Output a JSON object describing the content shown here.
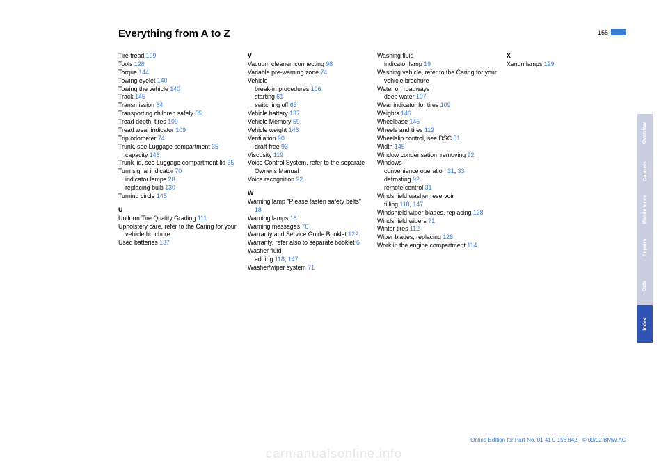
{
  "header": {
    "title": "Everything from A to Z",
    "page_number": "155"
  },
  "colors": {
    "link": "#3a7bd5",
    "tab_grey": "#c9cfe0",
    "tab_blue": "#2f52b5",
    "watermark": "#e6e6e6"
  },
  "tabs": [
    {
      "label": "Overview",
      "style": "grey"
    },
    {
      "label": "Controls",
      "style": "grey"
    },
    {
      "label": "Maintenance",
      "style": "grey"
    },
    {
      "label": "Repairs",
      "style": "grey"
    },
    {
      "label": "Data",
      "style": "grey"
    },
    {
      "label": "Index",
      "style": "blue"
    }
  ],
  "footer": "Online Edition for Part-No. 01 41 0 156 842 - © 09/02 BMW AG",
  "watermark": "carmanualsonline.info",
  "columns": [
    [
      {
        "t": "Tire tread ",
        "r": "109"
      },
      {
        "t": "Tools ",
        "r": "128"
      },
      {
        "t": "Torque ",
        "r": "144"
      },
      {
        "t": "Towing eyelet ",
        "r": "140"
      },
      {
        "t": "Towing the vehicle ",
        "r": "140"
      },
      {
        "t": "Track ",
        "r": "145"
      },
      {
        "t": "Transmission ",
        "r": "64"
      },
      {
        "t": "Transporting children safely ",
        "r": "55",
        "wrap": true
      },
      {
        "t": "Tread depth, tires ",
        "r": "109"
      },
      {
        "t": "Tread wear indicator ",
        "r": "109"
      },
      {
        "t": "Trip odometer ",
        "r": "74"
      },
      {
        "t": "Trunk, see Luggage compartment ",
        "r": "35",
        "wrap": true
      },
      {
        "t": "capacity ",
        "r": "146",
        "sub": true
      },
      {
        "t": "Trunk lid, see Luggage compartment lid ",
        "r": "35",
        "wrap": true
      },
      {
        "t": "Turn signal indicator ",
        "r": "70"
      },
      {
        "t": "indicator lamps ",
        "r": "20",
        "sub": true
      },
      {
        "t": "replacing bulb ",
        "r": "130",
        "sub": true
      },
      {
        "t": "Turning circle ",
        "r": "145"
      },
      {
        "letter": "U"
      },
      {
        "t": "Uniform Tire Quality Grading ",
        "r": "111",
        "wrap": true
      },
      {
        "t": "Upholstery care, refer to the Caring for your vehicle brochure",
        "wrap": true
      },
      {
        "t": "Used batteries ",
        "r": "137"
      }
    ],
    [
      {
        "letter": "V"
      },
      {
        "t": "Vacuum cleaner, connecting ",
        "r": "98",
        "wrap": true
      },
      {
        "t": "Variable pre-warning zone ",
        "r": "74",
        "wrap": true
      },
      {
        "t": "Vehicle"
      },
      {
        "t": "break-in procedures ",
        "r": "106",
        "sub": true
      },
      {
        "t": "starting ",
        "r": "61",
        "sub": true
      },
      {
        "t": "switching off ",
        "r": "63",
        "sub": true
      },
      {
        "t": "Vehicle battery ",
        "r": "137"
      },
      {
        "t": "Vehicle Memory ",
        "r": "59"
      },
      {
        "t": "Vehicle weight ",
        "r": "146"
      },
      {
        "t": "Ventilation ",
        "r": "90"
      },
      {
        "t": "draft-free ",
        "r": "93",
        "sub": true
      },
      {
        "t": "Viscosity ",
        "r": "119"
      },
      {
        "t": "Voice Control System, refer to the separate Owner's Manual",
        "wrap": true
      },
      {
        "t": "Voice recognition ",
        "r": "22"
      },
      {
        "letter": "W"
      },
      {
        "t": "Warning lamp \"Please fasten safety belts\" ",
        "r": "18",
        "wrap": true
      },
      {
        "t": "Warning lamps ",
        "r": "18"
      },
      {
        "t": "Warning messages ",
        "r": "76"
      },
      {
        "t": "Warranty and Service Guide Booklet ",
        "r": "122",
        "wrap": true
      },
      {
        "t": "Warranty, refer also to separate booklet ",
        "r": "6",
        "wrap": true
      },
      {
        "t": "Washer fluid"
      },
      {
        "t": "adding ",
        "r": "118",
        "r2": "147",
        "sub": true
      },
      {
        "t": "Washer/wiper system ",
        "r": "71"
      }
    ],
    [
      {
        "t": "Washing fluid"
      },
      {
        "t": "indicator lamp ",
        "r": "19",
        "sub": true
      },
      {
        "t": "Washing vehicle, refer to the Caring for your vehicle brochure",
        "wrap": true
      },
      {
        "t": "Water on roadways"
      },
      {
        "t": "deep water ",
        "r": "107",
        "sub": true
      },
      {
        "t": "Wear indicator for tires ",
        "r": "109"
      },
      {
        "t": "Weights ",
        "r": "146"
      },
      {
        "t": "Wheelbase ",
        "r": "145"
      },
      {
        "t": "Wheels and tires ",
        "r": "112"
      },
      {
        "t": "Wheelslip control, see DSC ",
        "r": "81",
        "wrap": true
      },
      {
        "t": "Width ",
        "r": "145"
      },
      {
        "t": "Window condensation, removing ",
        "r": "92",
        "wrap": true
      },
      {
        "t": "Windows"
      },
      {
        "t": "convenience operation ",
        "r": "31",
        "r2": "33",
        "sub": true,
        "wrap": true
      },
      {
        "t": "defrosting ",
        "r": "92",
        "sub": true
      },
      {
        "t": "remote control ",
        "r": "31",
        "sub": true
      },
      {
        "t": "Windshield washer reservoir"
      },
      {
        "t": "filling ",
        "r": "118",
        "r2": "147",
        "sub": true
      },
      {
        "t": "Windshield wiper blades, replacing ",
        "r": "128",
        "wrap": true
      },
      {
        "t": "Windshield wipers ",
        "r": "71"
      },
      {
        "t": "Winter tires ",
        "r": "112"
      },
      {
        "t": "Wiper blades, replacing ",
        "r": "128"
      },
      {
        "t": "Work in the engine compartment ",
        "r": "114",
        "wrap": true
      }
    ],
    [
      {
        "letter": "X"
      },
      {
        "t": "Xenon lamps ",
        "r": "129"
      }
    ]
  ]
}
